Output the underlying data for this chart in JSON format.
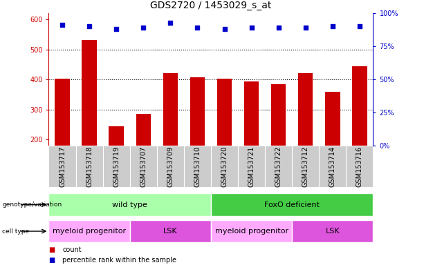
{
  "title": "GDS2720 / 1453029_s_at",
  "categories": [
    "GSM153717",
    "GSM153718",
    "GSM153719",
    "GSM153707",
    "GSM153709",
    "GSM153710",
    "GSM153720",
    "GSM153721",
    "GSM153722",
    "GSM153712",
    "GSM153714",
    "GSM153716"
  ],
  "bar_values": [
    403,
    530,
    245,
    287,
    420,
    407,
    402,
    393,
    385,
    420,
    360,
    443
  ],
  "percentile_values": [
    91,
    90,
    88,
    89,
    93,
    89,
    88,
    89,
    89,
    89,
    90,
    90
  ],
  "bar_color": "#cc0000",
  "dot_color": "#0000cc",
  "ylim_left": [
    180,
    620
  ],
  "ylim_right": [
    0,
    100
  ],
  "yticks_left": [
    200,
    300,
    400,
    500,
    600
  ],
  "yticks_right": [
    0,
    25,
    50,
    75,
    100
  ],
  "grid_values": [
    300,
    400,
    500
  ],
  "genotype_groups": [
    {
      "label": "wild type",
      "start": 0,
      "end": 6,
      "color": "#aaffaa"
    },
    {
      "label": "FoxO deficient",
      "start": 6,
      "end": 12,
      "color": "#44cc44"
    }
  ],
  "celltype_groups": [
    {
      "label": "myeloid progenitor",
      "start": 0,
      "end": 3,
      "color": "#ffaaff"
    },
    {
      "label": "LSK",
      "start": 3,
      "end": 6,
      "color": "#dd55dd"
    },
    {
      "label": "myeloid progenitor",
      "start": 6,
      "end": 9,
      "color": "#ffaaff"
    },
    {
      "label": "LSK",
      "start": 9,
      "end": 12,
      "color": "#dd55dd"
    }
  ],
  "xtick_bg_color": "#cccccc",
  "legend_count_color": "#cc0000",
  "legend_dot_color": "#0000cc",
  "title_fontsize": 10,
  "tick_fontsize": 7,
  "label_fontsize": 8,
  "bar_width": 0.55
}
